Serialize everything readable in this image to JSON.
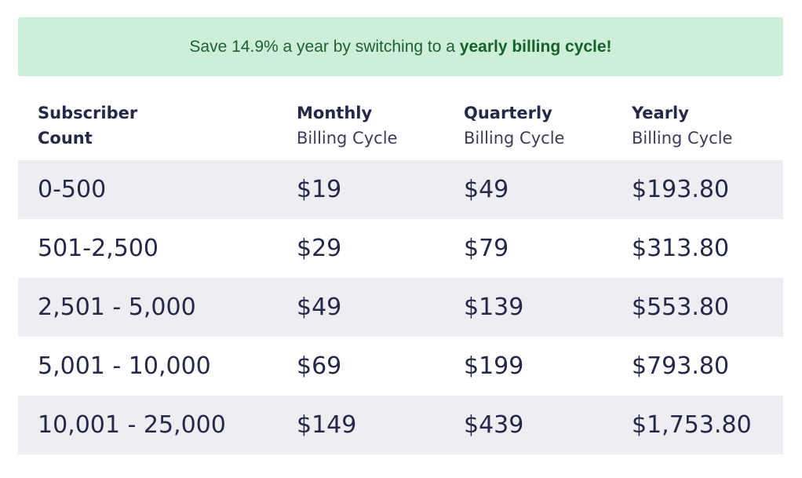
{
  "banner": {
    "prefix": "Save 14.9% a year by switching to a ",
    "highlight": "yearly billing cycle!"
  },
  "table": {
    "headers": [
      {
        "title": "Subscriber",
        "sub": "Count"
      },
      {
        "title": "Monthly",
        "sub": "Billing Cycle"
      },
      {
        "title": "Quarterly",
        "sub": "Billing Cycle"
      },
      {
        "title": "Yearly",
        "sub": "Billing Cycle"
      }
    ],
    "rows": [
      {
        "count": "0-500",
        "monthly": "$19",
        "quarterly": "$49",
        "yearly": "$193.80"
      },
      {
        "count": "501-2,500",
        "monthly": "$29",
        "quarterly": "$79",
        "yearly": "$313.80"
      },
      {
        "count": "2,501 - 5,000",
        "monthly": "$49",
        "quarterly": "$139",
        "yearly": "$553.80"
      },
      {
        "count": "5,001 - 10,000",
        "monthly": "$69",
        "quarterly": "$199",
        "yearly": "$793.80"
      },
      {
        "count": "10,001 - 25,000",
        "monthly": "$149",
        "quarterly": "$439",
        "yearly": "$1,753.80"
      }
    ]
  },
  "colors": {
    "banner_bg": "#cdeed8",
    "banner_text": "#1f5f34",
    "row_shade": "#eeeef2",
    "text": "#262848"
  }
}
